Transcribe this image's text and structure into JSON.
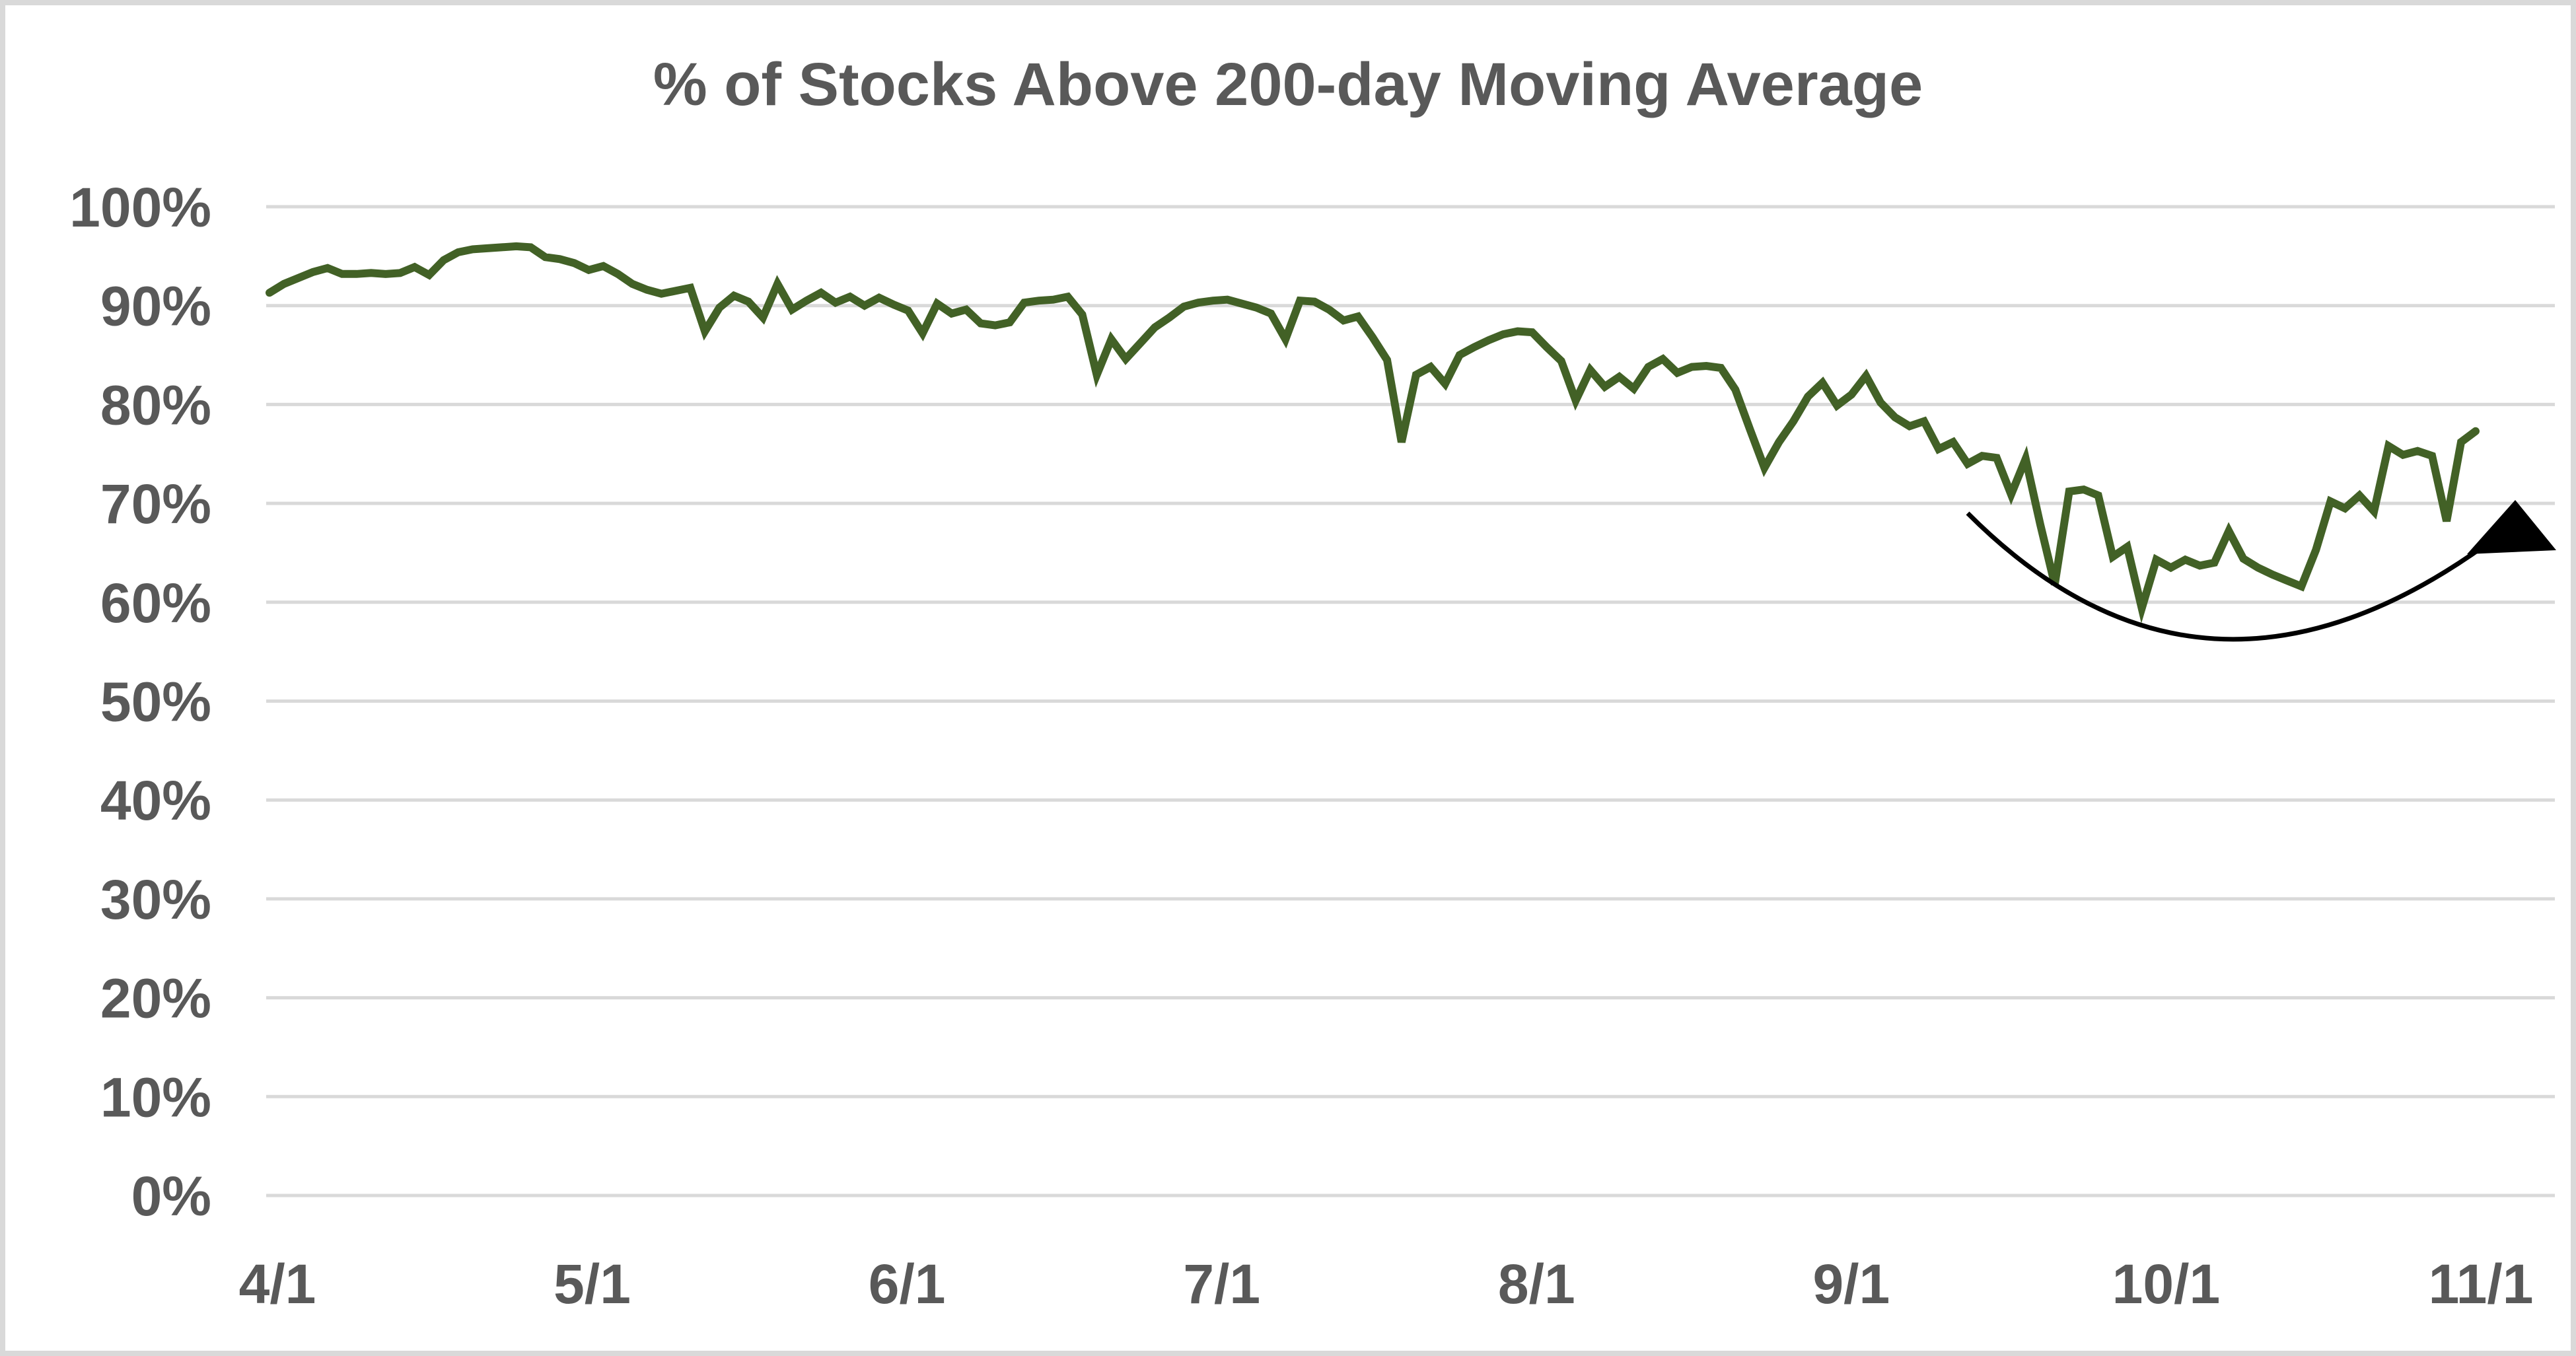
{
  "chart_data": {
    "type": "line",
    "title": "% of Stocks Above 200-day Moving Average",
    "xlabel": "",
    "ylabel": "",
    "ylim": [
      0,
      100
    ],
    "grid": "horizontal",
    "legend": "none",
    "y_tick_labels": [
      "100%",
      "90%",
      "80%",
      "70%",
      "60%",
      "50%",
      "40%",
      "30%",
      "20%",
      "10%",
      "0%"
    ],
    "x_tick_labels": [
      "4/1",
      "5/1",
      "6/1",
      "7/1",
      "8/1",
      "9/1",
      "10/1",
      "11/1"
    ],
    "series_name": "Percent of stocks above 200-day moving average",
    "x": [
      "4/1",
      "4/2",
      "4/3",
      "4/4",
      "4/5",
      "4/8",
      "4/9",
      "4/10",
      "4/11",
      "4/12",
      "4/15",
      "4/16",
      "4/17",
      "4/18",
      "4/19",
      "4/22",
      "4/23",
      "4/24",
      "4/25",
      "4/26",
      "4/29",
      "4/30",
      "5/1",
      "5/2",
      "5/3",
      "5/6",
      "5/7",
      "5/8",
      "5/9",
      "5/10",
      "5/13",
      "5/14",
      "5/15",
      "5/16",
      "5/17",
      "5/20",
      "5/21",
      "5/22",
      "5/23",
      "5/24",
      "5/27",
      "5/28",
      "5/29",
      "5/30",
      "5/31",
      "6/3",
      "6/4",
      "6/5",
      "6/6",
      "6/7",
      "6/10",
      "6/11",
      "6/12",
      "6/13",
      "6/14",
      "6/17",
      "6/18",
      "6/19",
      "6/20",
      "6/21",
      "6/24",
      "6/25",
      "6/26",
      "6/27",
      "6/28",
      "7/1",
      "7/2",
      "7/3",
      "7/5",
      "7/8",
      "7/9",
      "7/10",
      "7/11",
      "7/12",
      "7/15",
      "7/16",
      "7/17",
      "7/18",
      "7/19",
      "7/22",
      "7/23",
      "7/24",
      "7/25",
      "7/26",
      "7/29",
      "7/30",
      "7/31",
      "8/1",
      "8/2",
      "8/5",
      "8/6",
      "8/7",
      "8/8",
      "8/9",
      "8/12",
      "8/13",
      "8/14",
      "8/15",
      "8/16",
      "8/19",
      "8/20",
      "8/21",
      "8/22",
      "8/23",
      "8/26",
      "8/27",
      "8/28",
      "8/29",
      "8/30",
      "9/2",
      "9/3",
      "9/4",
      "9/5",
      "9/6",
      "9/9",
      "9/10",
      "9/11",
      "9/12",
      "9/13",
      "9/16",
      "9/17",
      "9/18",
      "9/19",
      "9/20",
      "9/23",
      "9/24",
      "9/25",
      "9/26",
      "9/27",
      "9/30",
      "10/1",
      "10/2",
      "10/3",
      "10/4",
      "10/7",
      "10/8",
      "10/9",
      "10/10",
      "10/11",
      "10/14",
      "10/15",
      "10/16",
      "10/17",
      "10/18",
      "10/21",
      "10/22",
      "10/23",
      "10/24",
      "10/25",
      "10/28",
      "10/29",
      "10/30",
      "10/31"
    ],
    "values": [
      91.3,
      92.2,
      92.8,
      93.4,
      93.8,
      93.2,
      93.2,
      93.3,
      93.2,
      93.3,
      93.9,
      93.1,
      94.6,
      95.4,
      95.7,
      95.8,
      95.9,
      96.0,
      95.9,
      94.9,
      94.7,
      94.3,
      93.6,
      94.0,
      93.2,
      92.2,
      91.6,
      91.2,
      91.5,
      91.8,
      87.4,
      89.8,
      91.0,
      90.4,
      88.8,
      92.2,
      89.6,
      90.5,
      91.3,
      90.3,
      90.9,
      90.0,
      90.8,
      90.1,
      89.5,
      87.2,
      90.2,
      89.2,
      89.6,
      88.2,
      88.0,
      88.3,
      90.3,
      90.5,
      90.6,
      90.9,
      89.1,
      83.0,
      86.6,
      84.6,
      86.2,
      87.8,
      88.8,
      89.9,
      90.3,
      90.5,
      90.6,
      90.2,
      89.8,
      89.2,
      86.6,
      90.5,
      90.4,
      89.6,
      88.5,
      88.9,
      86.8,
      84.5,
      76.2,
      83.0,
      83.8,
      82.1,
      85.0,
      85.8,
      86.5,
      87.1,
      87.4,
      87.3,
      85.8,
      84.4,
      80.4,
      83.5,
      81.8,
      82.8,
      81.6,
      83.8,
      84.6,
      83.2,
      83.8,
      83.9,
      83.7,
      81.5,
      77.5,
      73.6,
      76.2,
      78.3,
      80.8,
      82.2,
      79.9,
      81.0,
      82.9,
      80.2,
      78.7,
      77.8,
      78.3,
      75.5,
      76.2,
      74.0,
      74.8,
      74.6,
      70.9,
      74.5,
      67.9,
      61.8,
      71.2,
      71.4,
      70.8,
      64.6,
      65.6,
      59.4,
      64.3,
      63.5,
      64.3,
      63.7,
      64.0,
      67.2,
      64.4,
      63.5,
      62.8,
      62.2,
      61.6,
      65.3,
      70.2,
      69.5,
      70.8,
      69.2,
      75.8,
      74.9,
      75.3,
      74.8,
      68.2,
      76.2,
      77.3
    ],
    "annotation": {
      "shape": "curved-up-arrow",
      "meaning": "swoosh arc sweeping under the September-October lows up to the final rebound, arrowhead pointing up",
      "start_date": "9/12",
      "start_value": 69.0,
      "dip_date": "10/7",
      "dip_value": 56.3,
      "end_date": "10/31",
      "end_value": 65.8,
      "color": "#000000"
    },
    "style": {
      "line_color": "#426126",
      "line_width": 12,
      "grid_color": "#d9d9d9",
      "text_color": "#595959",
      "background": "#ffffff",
      "border_color": "#d9d9d9"
    }
  }
}
